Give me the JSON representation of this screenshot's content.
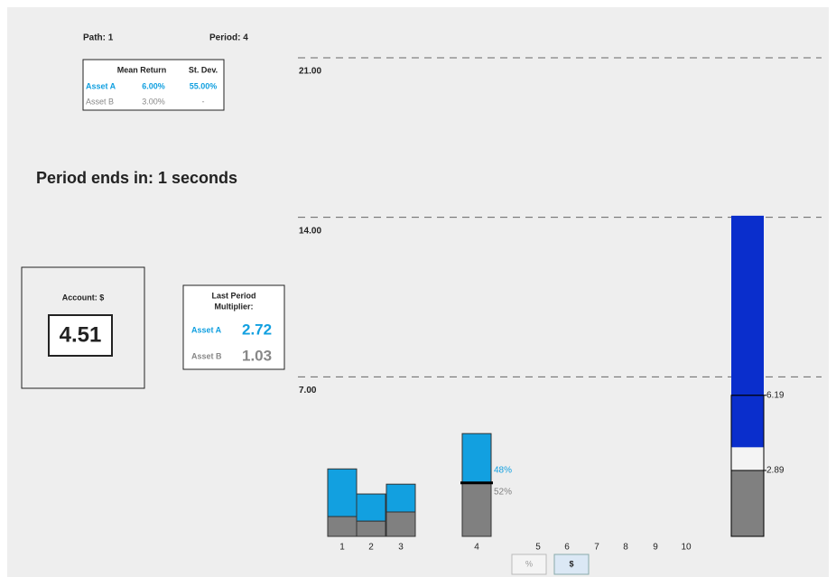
{
  "header": {
    "path": "Path: 1",
    "period": "Period: 4"
  },
  "stats_table": {
    "columns": [
      "Mean Return",
      "St. Dev."
    ],
    "rows": [
      [
        "Asset A",
        "6.00%",
        "55.00%"
      ],
      [
        "Asset B",
        "3.00%",
        "-"
      ]
    ]
  },
  "timer": "Period ends in: 1 seconds",
  "account": {
    "label": "Account: $",
    "value": "4.51"
  },
  "multiplier": {
    "title": "Last Period",
    "subtitle": "Multiplier:",
    "rows": [
      [
        "Asset A",
        "2.72"
      ],
      [
        "Asset B",
        "1.03"
      ]
    ]
  },
  "buttons": [
    "%",
    "$"
  ],
  "chart_data": {
    "type": "bar",
    "categories": [
      1,
      2,
      3,
      4,
      5,
      6,
      7,
      8,
      9,
      10
    ],
    "series": [
      {
        "name": "Asset B",
        "color": "#808080",
        "values": [
          0.87,
          0.67,
          1.07,
          2.35,
          null,
          null,
          null,
          null,
          null,
          null
        ]
      },
      {
        "name": "Asset A",
        "color": "#12a0e0",
        "values": [
          2.09,
          1.19,
          1.22,
          2.16,
          null,
          null,
          null,
          null,
          null,
          null
        ]
      }
    ],
    "annotations": [
      "52%",
      "48%"
    ],
    "ylim": [
      0,
      21
    ],
    "yticks": [
      {
        "value": 7,
        "label": "7.00"
      },
      {
        "value": 14,
        "label": "14.00"
      },
      {
        "value": 21,
        "label": "21.00"
      }
    ],
    "grid": true,
    "projection": {
      "segments": [
        {
          "color": "#808080",
          "value": 2.89
        },
        {
          "color": "#f4f4f4",
          "value": 1.02
        },
        {
          "color": "#0a2ecc",
          "value": 10.16
        }
      ],
      "markers": [
        2.89,
        6.19
      ]
    }
  }
}
